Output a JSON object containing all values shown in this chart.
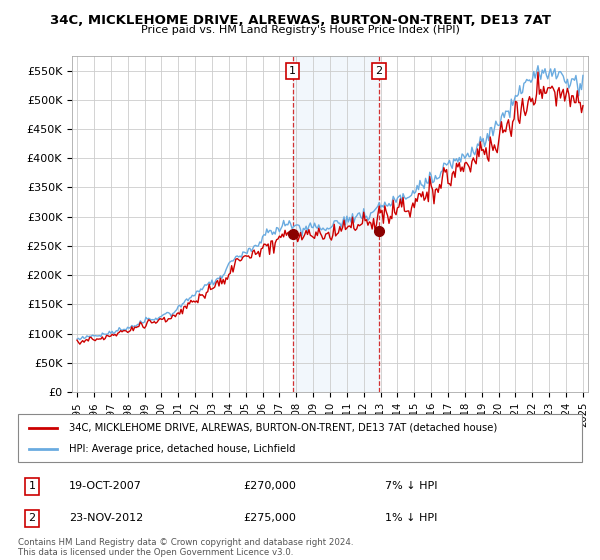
{
  "title": "34C, MICKLEHOME DRIVE, ALREWAS, BURTON-ON-TRENT, DE13 7AT",
  "subtitle": "Price paid vs. HM Land Registry's House Price Index (HPI)",
  "ytick_values": [
    0,
    50000,
    100000,
    150000,
    200000,
    250000,
    300000,
    350000,
    400000,
    450000,
    500000,
    550000
  ],
  "ylim": [
    0,
    575000
  ],
  "sale1_x": 2007.79,
  "sale1_price": 270000,
  "sale2_x": 2012.9,
  "sale2_price": 275000,
  "hpi_color": "#6aabe0",
  "price_color": "#cc0000",
  "shade_color": "#daeaf7",
  "legend_label1": "34C, MICKLEHOME DRIVE, ALREWAS, BURTON-ON-TRENT, DE13 7AT (detached house)",
  "legend_label2": "HPI: Average price, detached house, Lichfield",
  "annotation1_date": "19-OCT-2007",
  "annotation1_price": "£270,000",
  "annotation1_hpi": "7% ↓ HPI",
  "annotation2_date": "23-NOV-2012",
  "annotation2_price": "£275,000",
  "annotation2_hpi": "1% ↓ HPI",
  "footer": "Contains HM Land Registry data © Crown copyright and database right 2024.\nThis data is licensed under the Open Government Licence v3.0.",
  "x_start_year": 1995,
  "x_end_year": 2025
}
